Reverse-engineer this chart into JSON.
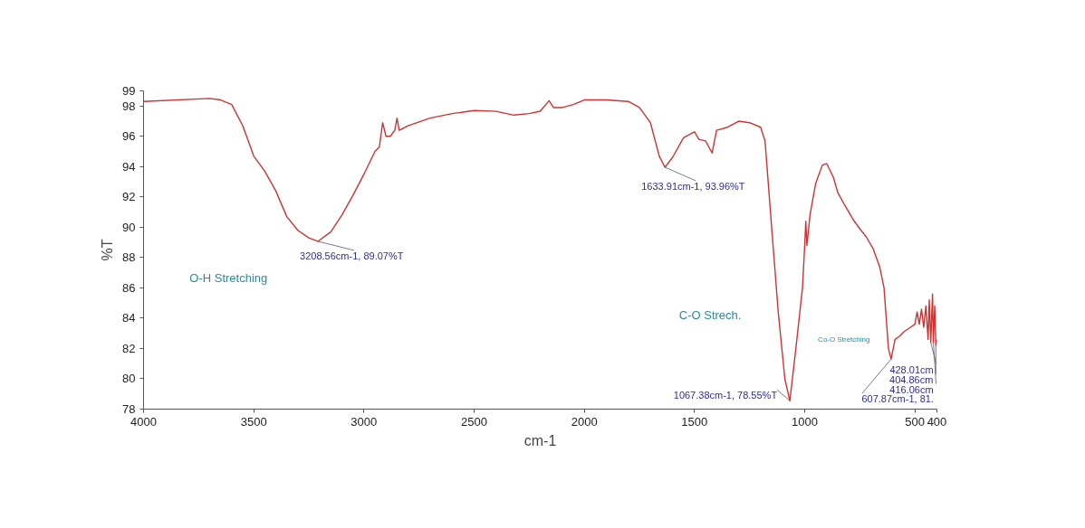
{
  "chart_data": {
    "type": "line",
    "xlabel": "cm-1",
    "ylabel": "%T",
    "xlim": [
      4000,
      400
    ],
    "ylim": [
      78,
      99
    ],
    "xticks": [
      4000,
      3500,
      3000,
      2500,
      2000,
      1500,
      1000,
      500,
      400
    ],
    "yticks": [
      78,
      80,
      82,
      84,
      86,
      88,
      90,
      92,
      94,
      96,
      98,
      99
    ],
    "grid": false,
    "marker": "none",
    "line_style": "solid",
    "series": [
      {
        "color": "#cc3333",
        "x": [
          4000,
          3700,
          3650,
          3600,
          3550,
          3500,
          3450,
          3400,
          3350,
          3300,
          3250,
          3208.56,
          3150,
          3100,
          3050,
          3000,
          2950,
          2930,
          2915,
          2900,
          2880,
          2860,
          2850,
          2840,
          2800,
          2700,
          2600,
          2500,
          2400,
          2320,
          2250,
          2200,
          2160,
          2140,
          2100,
          2050,
          2000,
          1900,
          1800,
          1750,
          1700,
          1660,
          1633.91,
          1600,
          1550,
          1500,
          1480,
          1450,
          1420,
          1400,
          1350,
          1300,
          1250,
          1200,
          1180,
          1150,
          1120,
          1090,
          1067.38,
          1040,
          1010,
          1000,
          995,
          990,
          975,
          950,
          920,
          900,
          870,
          850,
          820,
          780,
          750,
          720,
          690,
          660,
          640,
          620,
          607.87,
          590,
          570,
          550,
          520,
          500,
          490,
          480,
          470,
          460,
          450,
          440,
          435,
          428.01,
          420,
          416.06,
          410,
          404.86,
          400
        ],
        "values": [
          98.3,
          98.5,
          98.4,
          98.1,
          96.7,
          94.7,
          93.7,
          92.4,
          90.7,
          89.8,
          89.3,
          89.07,
          89.7,
          90.8,
          92.1,
          93.5,
          95.0,
          95.3,
          96.9,
          96.0,
          96.0,
          96.4,
          97.2,
          96.4,
          96.7,
          97.2,
          97.5,
          97.7,
          97.65,
          97.4,
          97.5,
          97.66,
          98.35,
          97.9,
          97.9,
          98.1,
          98.4,
          98.4,
          98.3,
          97.9,
          96.9,
          94.7,
          93.96,
          94.6,
          95.9,
          96.3,
          95.8,
          95.7,
          94.9,
          96.4,
          96.6,
          97.0,
          96.9,
          96.6,
          95.7,
          90.0,
          84.4,
          80.0,
          78.55,
          82.0,
          86.0,
          88.8,
          90.4,
          88.8,
          90.9,
          92.9,
          94.1,
          94.2,
          93.3,
          92.3,
          91.5,
          90.5,
          89.9,
          89.35,
          88.6,
          87.4,
          86.0,
          82.0,
          81.3,
          82.6,
          82.8,
          83.1,
          83.4,
          83.6,
          84.4,
          83.6,
          84.6,
          83.4,
          84.8,
          82.6,
          85.2,
          82.4,
          85.6,
          82.4,
          84.8,
          82.2,
          82.6
        ]
      }
    ],
    "annotations": [
      {
        "text": "3208.56cm-1, 89.07%T",
        "x": 3208.56,
        "y": 89.07
      },
      {
        "text": "1633.91cm-1, 93.96%T",
        "x": 1633.91,
        "y": 93.96
      },
      {
        "text": "1067.38cm-1, 78.55%T",
        "x": 1067.38,
        "y": 78.55
      },
      {
        "text": "428.01cm",
        "x": 428.01,
        "y": 82.4
      },
      {
        "text": "404.86cm",
        "x": 404.86,
        "y": 82.2
      },
      {
        "text": "416.06cm",
        "x": 416.06,
        "y": 82.4
      },
      {
        "text": "607.87cm-1, 81.",
        "x": 607.87,
        "y": 81.3
      },
      "O-H Stretching",
      "C-O Strech.",
      "Co-O Stretching"
    ]
  }
}
